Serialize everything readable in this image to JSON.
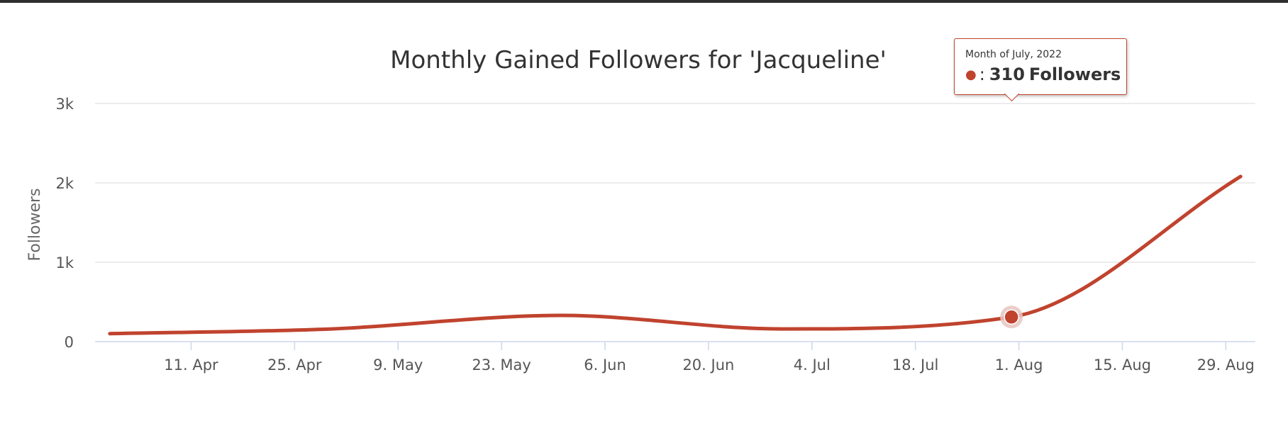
{
  "colors": {
    "series": "#c0432e",
    "marker_halo": "#e8c6c0",
    "tooltip_border": "#c0432e"
  },
  "chart_data": {
    "type": "line",
    "title": "Monthly Gained Followers for 'Jacqueline'",
    "ylabel": "Followers",
    "xlabel": "",
    "ylim": [
      0,
      3000
    ],
    "xlim": [
      "2022-03-29",
      "2022-09-02"
    ],
    "y_ticks": [
      0,
      1000,
      2000,
      3000
    ],
    "y_tick_labels": [
      "0",
      "1k",
      "2k",
      "3k"
    ],
    "x_ticks": [
      {
        "date": "2022-04-11",
        "label": "11. Apr"
      },
      {
        "date": "2022-04-25",
        "label": "25. Apr"
      },
      {
        "date": "2022-05-09",
        "label": "9. May"
      },
      {
        "date": "2022-05-23",
        "label": "23. May"
      },
      {
        "date": "2022-06-06",
        "label": "6. Jun"
      },
      {
        "date": "2022-06-20",
        "label": "20. Jun"
      },
      {
        "date": "2022-07-04",
        "label": "4. Jul"
      },
      {
        "date": "2022-07-18",
        "label": "18. Jul"
      },
      {
        "date": "2022-08-01",
        "label": "1. Aug"
      },
      {
        "date": "2022-08-15",
        "label": "15. Aug"
      },
      {
        "date": "2022-08-29",
        "label": "29. Aug"
      }
    ],
    "grid": true,
    "series": [
      {
        "name": "",
        "points": [
          {
            "x": "2022-03-31",
            "y": 100
          },
          {
            "x": "2022-04-30",
            "y": 160
          },
          {
            "x": "2022-05-31",
            "y": 330
          },
          {
            "x": "2022-06-30",
            "y": 160
          },
          {
            "x": "2022-07-31",
            "y": 310
          },
          {
            "x": "2022-08-31",
            "y": 2080
          }
        ]
      }
    ],
    "highlight": {
      "series": 0,
      "point": 4,
      "tooltip_header": "Month of July, 2022",
      "tooltip_sep": ":",
      "tooltip_value": "310",
      "tooltip_unit": "Followers"
    }
  }
}
